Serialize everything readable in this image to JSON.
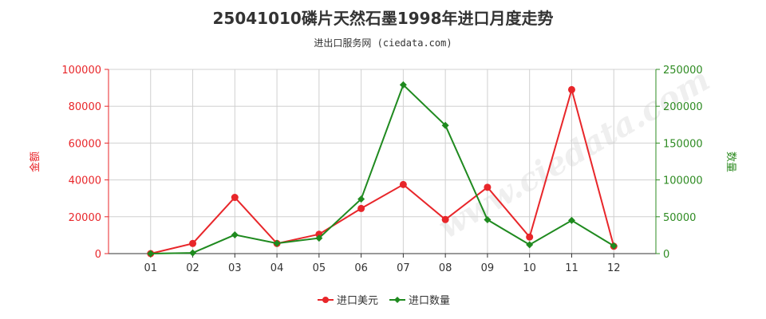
{
  "chart_data": {
    "type": "line",
    "title": "25041010磷片天然石墨1998年进口月度走势",
    "subtitle": "进出口服务网 (ciedata.com)",
    "watermark": "www.ciedata.com",
    "categories": [
      "01",
      "02",
      "03",
      "04",
      "05",
      "06",
      "07",
      "08",
      "09",
      "10",
      "11",
      "12"
    ],
    "y_left": {
      "label": "金额",
      "ylim": [
        0,
        100000
      ],
      "ticks": [
        "0",
        "20000",
        "40000",
        "60000",
        "80000",
        "100000"
      ],
      "color": "#e8262a"
    },
    "y_right": {
      "label": "数量",
      "ylim": [
        0,
        250000
      ],
      "ticks": [
        "0",
        "50000",
        "100000",
        "150000",
        "200000",
        "250000"
      ],
      "color": "#2e8b22"
    },
    "series": [
      {
        "name": "进口美元",
        "axis": "left",
        "color": "#e8262a",
        "marker": "circle",
        "values": [
          0,
          5500,
          30500,
          5500,
          10500,
          24500,
          37500,
          18500,
          36000,
          9000,
          89000,
          4000
        ]
      },
      {
        "name": "进口数量",
        "axis": "right",
        "color": "#1f8a1f",
        "marker": "diamond",
        "values": [
          0,
          1000,
          25500,
          14000,
          21000,
          74000,
          229000,
          174000,
          46000,
          12000,
          45000,
          10500
        ]
      }
    ],
    "grid": true,
    "legend_position": "bottom-center"
  }
}
